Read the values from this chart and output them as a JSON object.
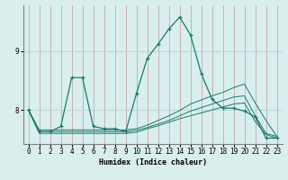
{
  "xlabel": "Humidex (Indice chaleur)",
  "bg_color": "#d8efee",
  "grid_color_v": "#c8a8a8",
  "grid_color_h": "#b8d4d4",
  "line_color": "#1a7a6a",
  "xlim": [
    -0.5,
    23.5
  ],
  "ylim": [
    7.42,
    9.78
  ],
  "yticks": [
    8,
    9
  ],
  "xticks": [
    0,
    1,
    2,
    3,
    4,
    5,
    6,
    7,
    8,
    9,
    10,
    11,
    12,
    13,
    14,
    15,
    16,
    17,
    18,
    19,
    20,
    21,
    22,
    23
  ],
  "lines": [
    {
      "x": [
        0,
        1,
        2,
        3,
        4,
        5,
        6,
        7,
        8,
        9,
        10,
        11,
        12,
        13,
        14,
        15,
        16,
        17,
        18,
        19,
        20,
        21,
        22,
        23
      ],
      "y": [
        8.0,
        7.63,
        7.63,
        7.72,
        8.55,
        8.55,
        7.72,
        7.68,
        7.68,
        7.63,
        8.28,
        8.88,
        9.12,
        9.38,
        9.58,
        9.28,
        8.62,
        8.18,
        8.03,
        8.03,
        7.98,
        7.88,
        7.52,
        7.52
      ],
      "marker": true
    },
    {
      "x": [
        0,
        1,
        2,
        3,
        4,
        5,
        6,
        7,
        8,
        9,
        10,
        11,
        12,
        13,
        14,
        15,
        16,
        17,
        18,
        19,
        20,
        21,
        22,
        23
      ],
      "y": [
        8.0,
        7.63,
        7.63,
        7.63,
        7.63,
        7.63,
        7.63,
        7.63,
        7.63,
        7.63,
        7.65,
        7.7,
        7.76,
        7.82,
        7.9,
        7.98,
        8.04,
        8.1,
        8.16,
        8.22,
        8.24,
        7.9,
        7.6,
        7.55
      ],
      "marker": false
    },
    {
      "x": [
        0,
        1,
        2,
        3,
        4,
        5,
        6,
        7,
        8,
        9,
        10,
        11,
        12,
        13,
        14,
        15,
        16,
        17,
        18,
        19,
        20,
        21,
        22,
        23
      ],
      "y": [
        8.0,
        7.66,
        7.66,
        7.66,
        7.66,
        7.66,
        7.66,
        7.66,
        7.66,
        7.66,
        7.68,
        7.74,
        7.82,
        7.9,
        7.99,
        8.1,
        8.17,
        8.24,
        8.3,
        8.38,
        8.44,
        8.12,
        7.82,
        7.55
      ],
      "marker": false
    },
    {
      "x": [
        0,
        1,
        2,
        3,
        4,
        5,
        6,
        7,
        8,
        9,
        10,
        11,
        12,
        13,
        14,
        15,
        16,
        17,
        18,
        19,
        20,
        21,
        22,
        23
      ],
      "y": [
        8.0,
        7.6,
        7.6,
        7.6,
        7.6,
        7.6,
        7.6,
        7.6,
        7.6,
        7.6,
        7.62,
        7.68,
        7.73,
        7.79,
        7.85,
        7.9,
        7.95,
        8.0,
        8.05,
        8.1,
        8.12,
        7.8,
        7.58,
        7.52
      ],
      "marker": false
    }
  ]
}
